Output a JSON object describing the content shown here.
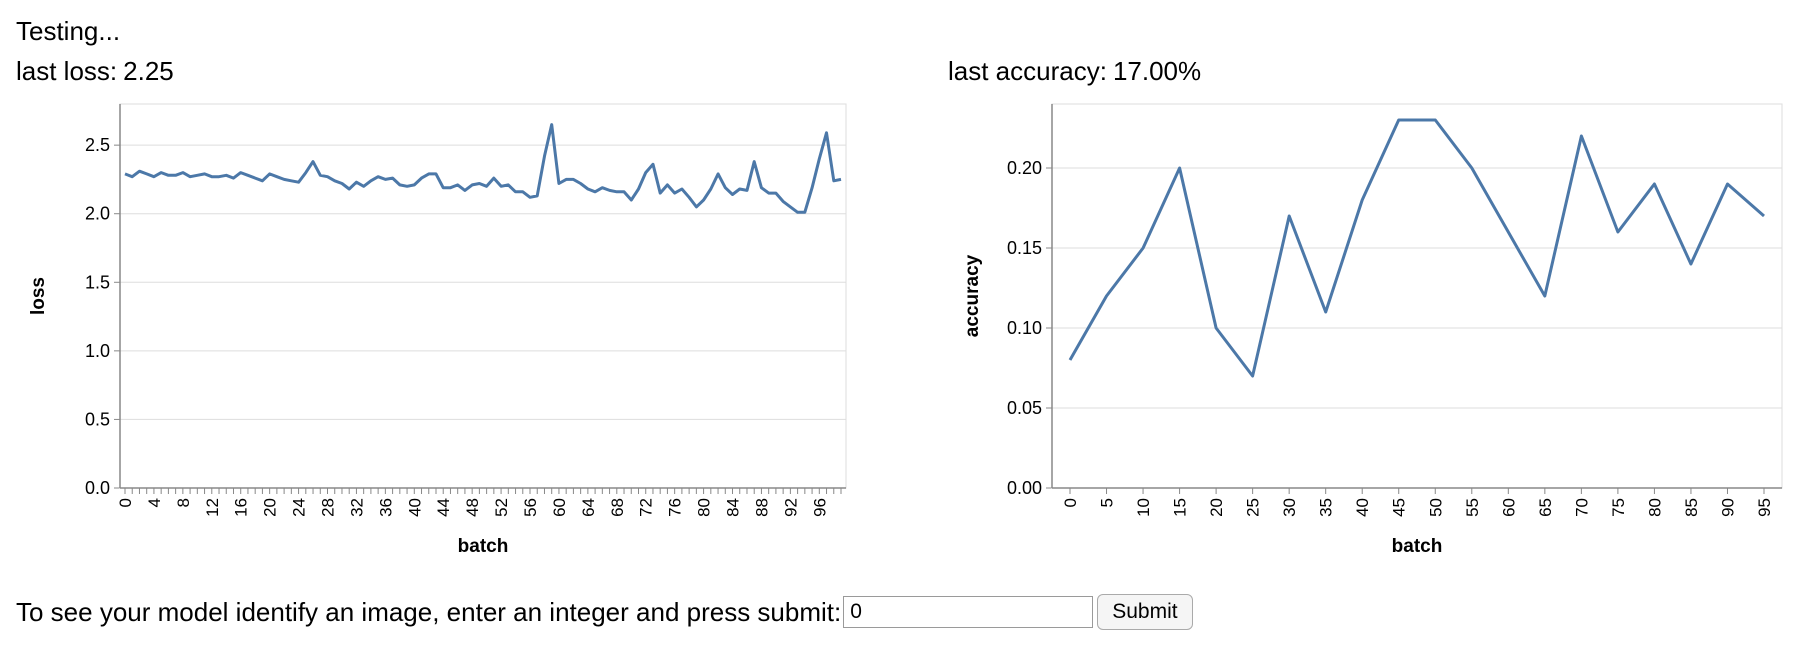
{
  "status": "Testing...",
  "loss_metric": {
    "label": "last loss:",
    "value": "2.25"
  },
  "accuracy_metric": {
    "label": "last accuracy:",
    "value": "17.00%"
  },
  "prompt": {
    "text": "To see your model identify an image, enter an integer and press submit:",
    "input_value": "0",
    "submit_label": "Submit"
  },
  "colors": {
    "line": "#4c78a8",
    "grid": "#dddddd",
    "axis": "#888888"
  },
  "chart_data": [
    {
      "type": "line",
      "xlabel": "batch",
      "ylabel": "loss",
      "ylim": [
        0,
        2.8
      ],
      "yticks": [
        0,
        0.5,
        1,
        1.5,
        2,
        2.5
      ],
      "ytick_labels": [
        "0.0",
        "0.5",
        "1.0",
        "1.5",
        "2.0",
        "2.5"
      ],
      "xtick_labels": [
        "0",
        "4",
        "8",
        "12",
        "16",
        "20",
        "24",
        "28",
        "32",
        "36",
        "40",
        "44",
        "48",
        "52",
        "56",
        "60",
        "64",
        "68",
        "72",
        "76",
        "80",
        "84",
        "88",
        "92",
        "96"
      ],
      "grid": "horizontal",
      "x": [
        0,
        1,
        2,
        3,
        4,
        5,
        6,
        7,
        8,
        9,
        10,
        11,
        12,
        13,
        14,
        15,
        16,
        17,
        18,
        19,
        20,
        21,
        22,
        23,
        24,
        25,
        26,
        27,
        28,
        29,
        30,
        31,
        32,
        33,
        34,
        35,
        36,
        37,
        38,
        39,
        40,
        41,
        42,
        43,
        44,
        45,
        46,
        47,
        48,
        49,
        50,
        51,
        52,
        53,
        54,
        55,
        56,
        57,
        58,
        59,
        60,
        61,
        62,
        63,
        64,
        65,
        66,
        67,
        68,
        69,
        70,
        71,
        72,
        73,
        74,
        75,
        76,
        77,
        78,
        79,
        80,
        81,
        82,
        83,
        84,
        85,
        86,
        87,
        88,
        89,
        90,
        91,
        92,
        93,
        94,
        95,
        96,
        97,
        98,
        99
      ],
      "y": [
        2.29,
        2.27,
        2.31,
        2.29,
        2.27,
        2.3,
        2.28,
        2.28,
        2.3,
        2.27,
        2.28,
        2.29,
        2.27,
        2.27,
        2.28,
        2.26,
        2.3,
        2.28,
        2.26,
        2.24,
        2.29,
        2.27,
        2.25,
        2.24,
        2.23,
        2.3,
        2.38,
        2.28,
        2.27,
        2.24,
        2.22,
        2.18,
        2.23,
        2.2,
        2.24,
        2.27,
        2.25,
        2.26,
        2.21,
        2.2,
        2.21,
        2.26,
        2.29,
        2.29,
        2.19,
        2.19,
        2.21,
        2.17,
        2.21,
        2.22,
        2.2,
        2.26,
        2.2,
        2.21,
        2.16,
        2.16,
        2.12,
        2.13,
        2.42,
        2.65,
        2.22,
        2.25,
        2.25,
        2.22,
        2.18,
        2.16,
        2.19,
        2.17,
        2.16,
        2.16,
        2.1,
        2.18,
        2.3,
        2.36,
        2.15,
        2.21,
        2.15,
        2.18,
        2.12,
        2.05,
        2.1,
        2.18,
        2.29,
        2.19,
        2.14,
        2.18,
        2.17,
        2.38,
        2.19,
        2.15,
        2.15,
        2.09,
        2.05,
        2.01,
        2.01,
        2.19,
        2.4,
        2.59,
        2.24,
        2.25
      ]
    },
    {
      "type": "line",
      "xlabel": "batch",
      "ylabel": "accuracy",
      "ylim": [
        0,
        0.24
      ],
      "yticks": [
        0,
        0.05,
        0.1,
        0.15,
        0.2
      ],
      "ytick_labels": [
        "0.00",
        "0.05",
        "0.10",
        "0.15",
        "0.20"
      ],
      "xtick_labels": [
        "0",
        "5",
        "10",
        "15",
        "20",
        "25",
        "30",
        "35",
        "40",
        "45",
        "50",
        "55",
        "60",
        "65",
        "70",
        "75",
        "80",
        "85",
        "90",
        "95"
      ],
      "grid": "horizontal",
      "x": [
        0,
        5,
        10,
        15,
        20,
        25,
        30,
        35,
        40,
        45,
        50,
        55,
        60,
        65,
        70,
        75,
        80,
        85,
        90,
        95
      ],
      "y": [
        0.08,
        0.12,
        0.15,
        0.2,
        0.1,
        0.07,
        0.17,
        0.11,
        0.18,
        0.23,
        0.23,
        0.2,
        0.16,
        0.12,
        0.22,
        0.16,
        0.19,
        0.14,
        0.19,
        0.17
      ]
    }
  ]
}
